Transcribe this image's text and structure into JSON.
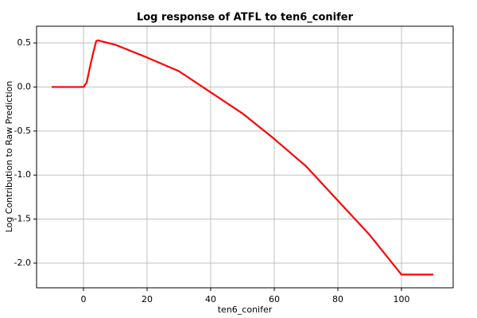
{
  "chart_data": {
    "type": "line",
    "title": "Log response of ATFL to ten6_conifer",
    "xlabel": "ten6_conifer",
    "ylabel": "Log Contribution to Raw Prediction",
    "x": [
      -10,
      -5,
      0,
      1,
      2,
      3,
      4,
      4.5,
      10,
      20,
      30,
      40,
      50,
      60,
      70,
      80,
      90,
      100,
      105,
      110
    ],
    "series": [
      {
        "name": "response",
        "color": "#ff0000",
        "values": [
          0,
          0,
          0,
          0.05,
          0.22,
          0.38,
          0.52,
          0.53,
          0.48,
          0.335,
          0.18,
          -0.06,
          -0.3,
          -0.59,
          -0.9,
          -1.29,
          -1.68,
          -2.13,
          -2.13,
          -2.13
        ]
      }
    ],
    "xlim": [
      -14.75,
      116.25
    ],
    "ylim": [
      -2.28,
      0.69
    ],
    "xticks": [
      0,
      20,
      40,
      60,
      80,
      100
    ],
    "yticks": [
      0.5,
      {
        "value": 0,
        "label": "0.0"
      },
      -0.5,
      {
        "value": -1,
        "label": "-1.0"
      },
      -1.5,
      {
        "value": -2,
        "label": "-2.0"
      }
    ],
    "grid": true
  }
}
